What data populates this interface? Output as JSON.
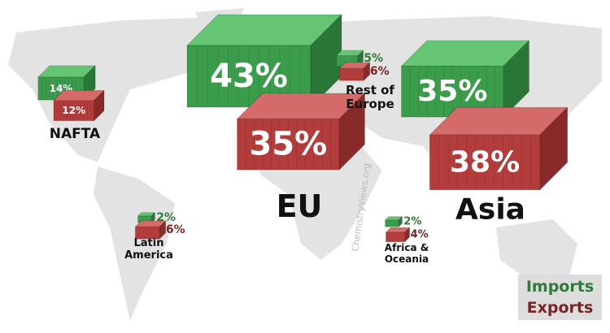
{
  "regions": [
    {
      "name": "NAFTA",
      "imports": 14,
      "imports_label": "14%",
      "exports": 12,
      "exports_label": "12%"
    },
    {
      "name": "EU",
      "imports": 43,
      "imports_label": "43%",
      "exports": 35,
      "exports_label": "35%"
    },
    {
      "name": "Rest of Europe",
      "imports": 5,
      "imports_label": "5%",
      "exports": 6,
      "exports_label": "6%"
    },
    {
      "name": "Asia",
      "imports": 35,
      "imports_label": "35%",
      "exports": 38,
      "exports_label": "38%"
    },
    {
      "name": "Latin America",
      "imports": 2,
      "imports_label": "2%",
      "exports": 6,
      "exports_label": "6%"
    },
    {
      "name": "Africa & Oceania",
      "imports": 2,
      "imports_label": "2%",
      "exports": 4,
      "exports_label": "4%"
    }
  ],
  "legend": {
    "imports": "Imports",
    "exports": "Exports"
  },
  "watermark": "ChemistryViews.org"
}
